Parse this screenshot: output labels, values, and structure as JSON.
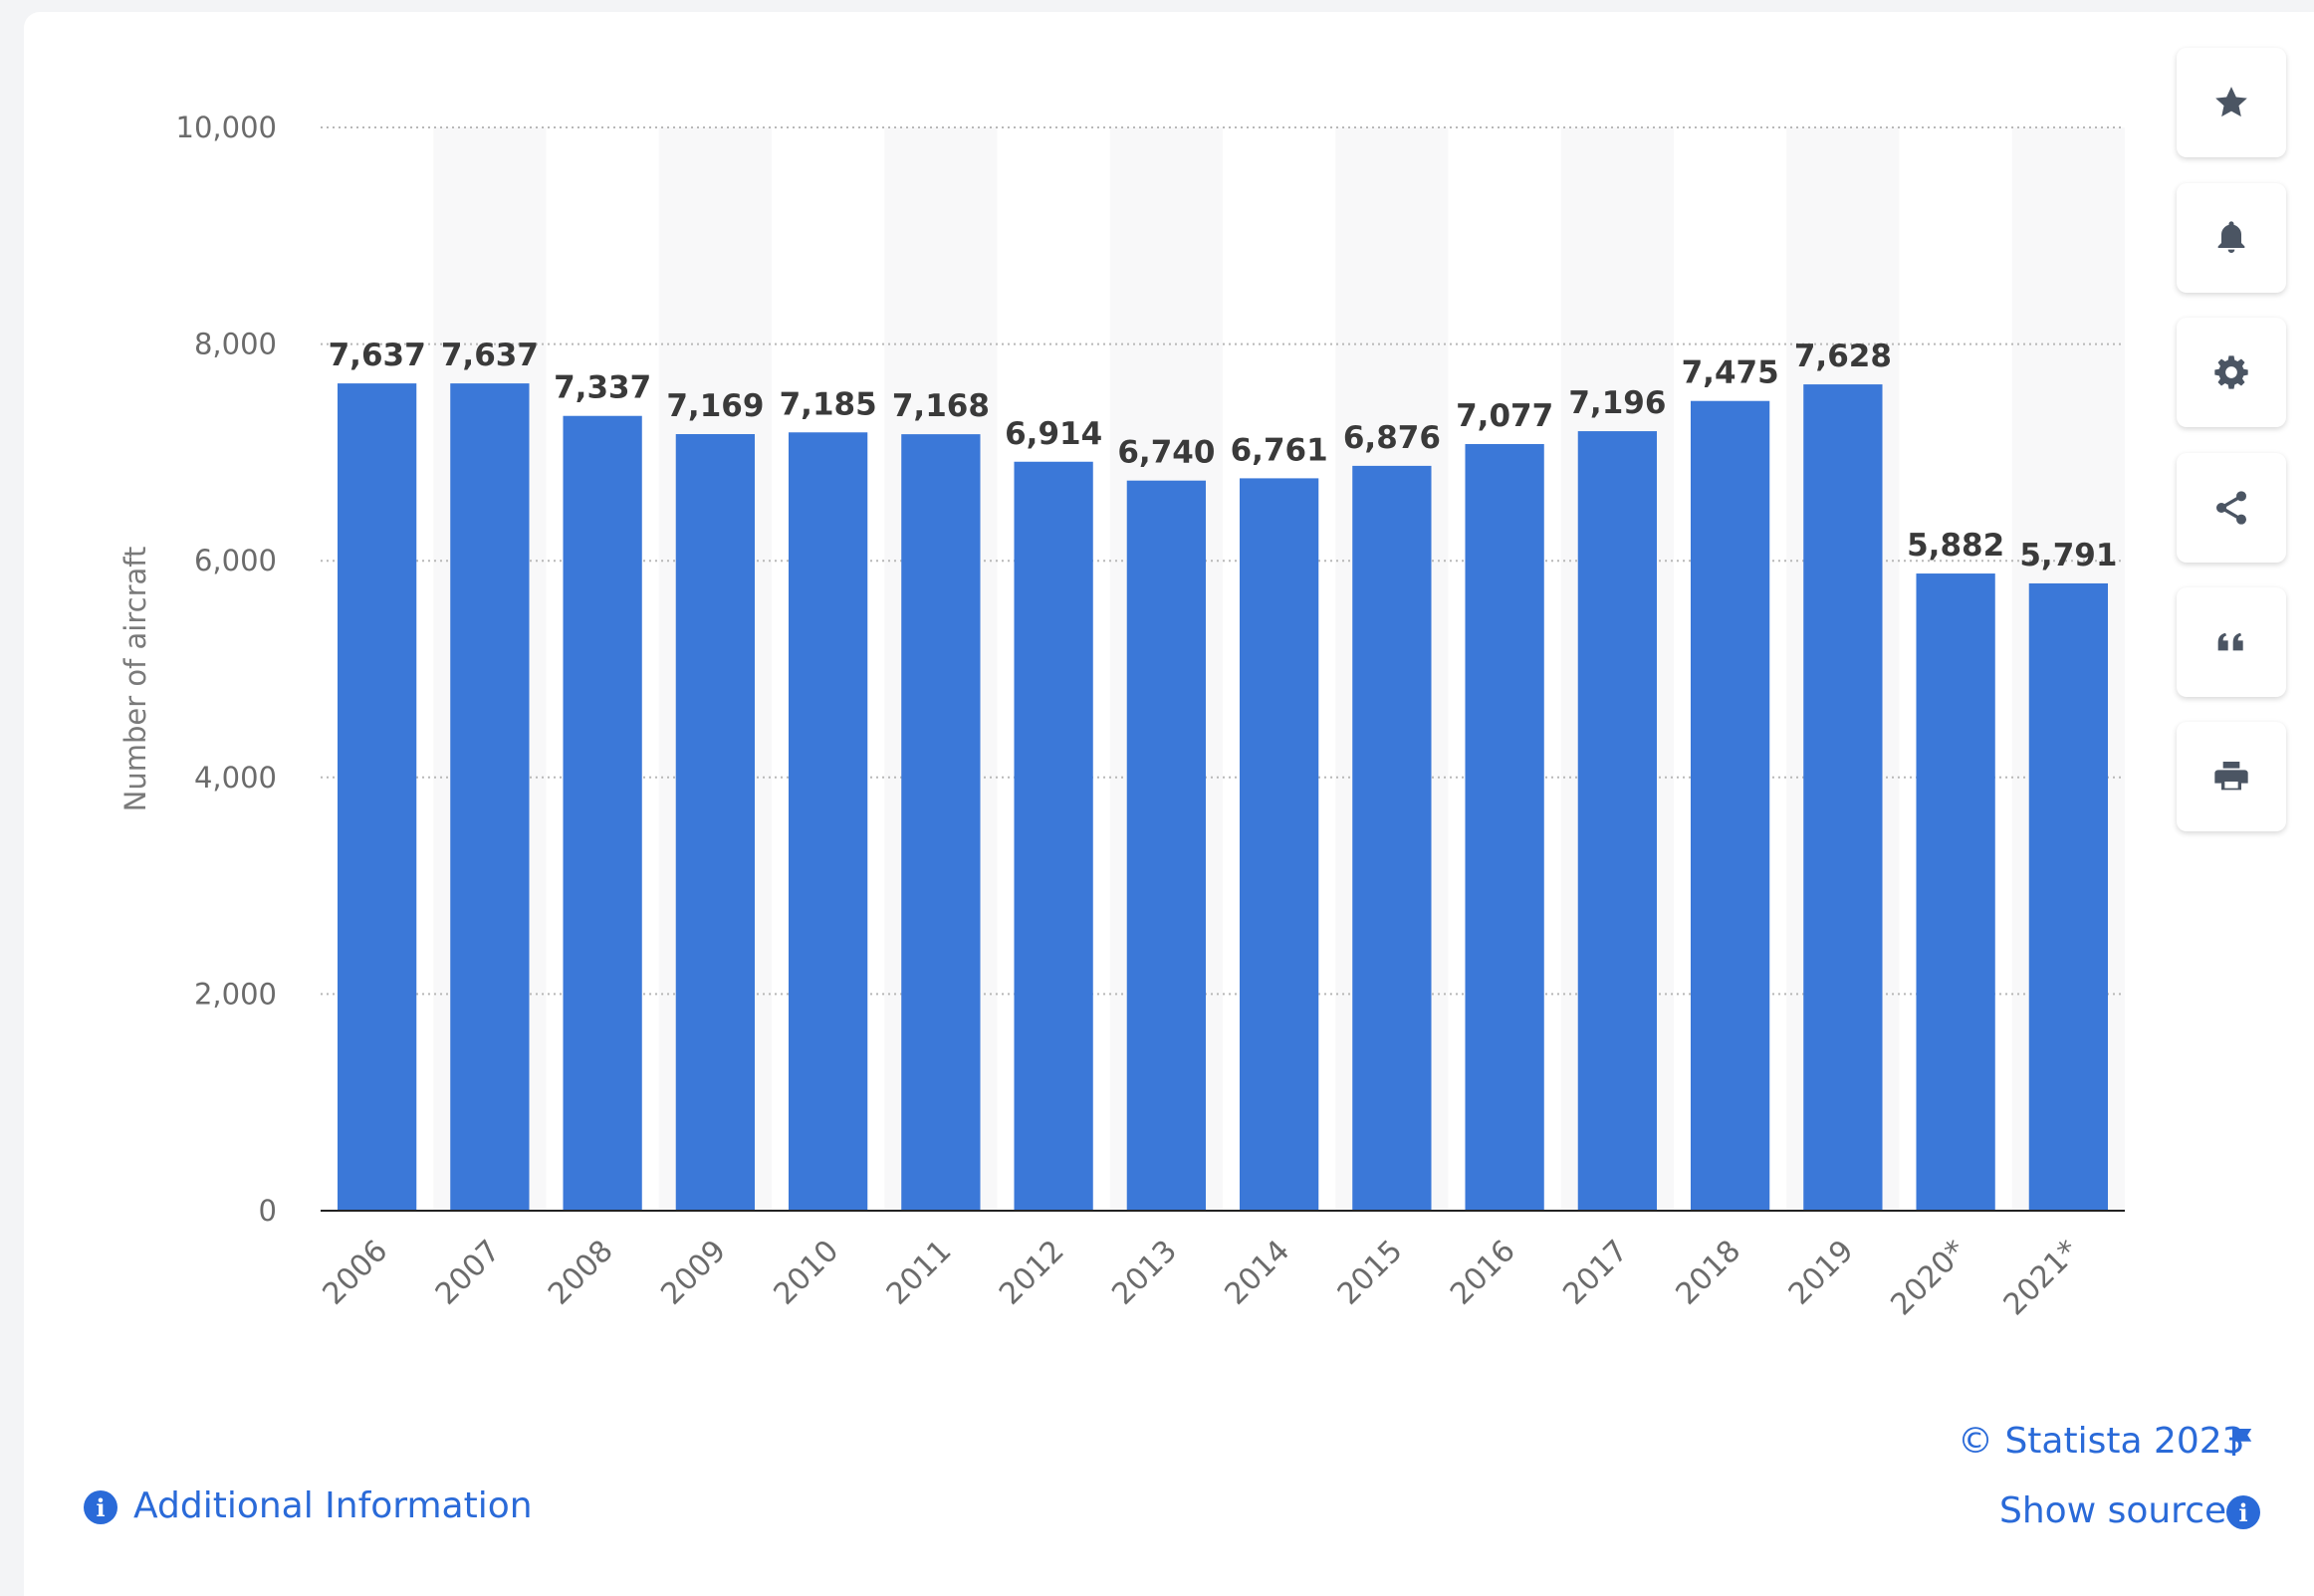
{
  "chart_data": {
    "type": "bar",
    "categories": [
      "2006",
      "2007",
      "2008",
      "2009",
      "2010",
      "2011",
      "2012",
      "2013",
      "2014",
      "2015",
      "2016",
      "2017",
      "2018",
      "2019",
      "2020*",
      "2021*"
    ],
    "values": [
      7637,
      7637,
      7337,
      7169,
      7185,
      7168,
      6914,
      6740,
      6761,
      6876,
      7077,
      7196,
      7475,
      7628,
      5882,
      5791
    ],
    "value_labels": [
      "7,637",
      "7,637",
      "7,337",
      "7,169",
      "7,185",
      "7,168",
      "6,914",
      "6,740",
      "6,761",
      "6,876",
      "7,077",
      "7,196",
      "7,475",
      "7,628",
      "5,882",
      "5,791"
    ],
    "ylabel": "Number of aircraft",
    "ylim": [
      0,
      10000
    ],
    "yticks": [
      0,
      2000,
      4000,
      6000,
      8000,
      10000
    ],
    "ytick_labels": [
      "0",
      "2,000",
      "4,000",
      "6,000",
      "8,000",
      "10,000"
    ],
    "grid": true,
    "bar_color": "#3b78d8",
    "band_color": "#f8f8f9"
  },
  "toolbar": {
    "items": [
      {
        "name": "star-icon"
      },
      {
        "name": "bell-icon"
      },
      {
        "name": "gear-icon"
      },
      {
        "name": "share-icon"
      },
      {
        "name": "quote-icon"
      },
      {
        "name": "print-icon"
      }
    ]
  },
  "footer": {
    "copyright": "© Statista 2023",
    "show_source": "Show source",
    "additional_info": "Additional Information"
  },
  "colors": {
    "accent": "#2a6ad8",
    "icon": "#4b5563"
  }
}
